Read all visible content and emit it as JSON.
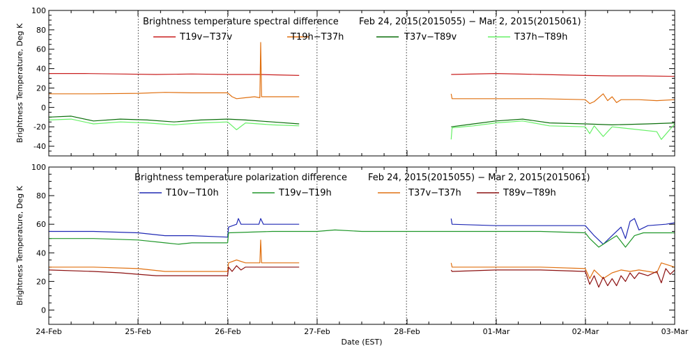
{
  "chart_data": [
    {
      "type": "line",
      "title": "Brightness temperature spectral difference",
      "date_range": "Feb 24, 2015(2015055) − Mar  2, 2015(2015061)",
      "ylabel": "Brightness Temperature, Deg K",
      "xlabel": "",
      "ylim": [
        -50,
        100
      ],
      "yticks": [
        -40,
        -20,
        0,
        20,
        40,
        60,
        80,
        100
      ],
      "xlim": [
        0,
        7
      ],
      "x_unit": "days since 24-Feb 00:00 EST",
      "series": [
        {
          "name": "T19v−T37v",
          "color": "#c81e1e",
          "segments": [
            [
              [
                0,
                35
              ],
              [
                0.4,
                35
              ],
              [
                0.8,
                34.5
              ],
              [
                1.2,
                34
              ],
              [
                1.6,
                34.5
              ],
              [
                2,
                34
              ],
              [
                2.2,
                34
              ],
              [
                2.35,
                34
              ],
              [
                2.8,
                33
              ]
            ],
            [
              [
                4.5,
                34
              ],
              [
                5,
                35
              ],
              [
                5.5,
                34
              ],
              [
                6,
                33
              ],
              [
                6.3,
                32.5
              ],
              [
                6.6,
                32.5
              ],
              [
                7,
                32
              ]
            ]
          ]
        },
        {
          "name": "T19h−T37h",
          "color": "#e07010",
          "segments": [
            [
              [
                0,
                14
              ],
              [
                0.5,
                14
              ],
              [
                1,
                14.5
              ],
              [
                1.3,
                15.5
              ],
              [
                1.6,
                15
              ],
              [
                2,
                15
              ],
              [
                2.05,
                11
              ],
              [
                2.1,
                9
              ],
              [
                2.2,
                10
              ],
              [
                2.3,
                11
              ],
              [
                2.36,
                10
              ],
              [
                2.37,
                67
              ],
              [
                2.38,
                11
              ],
              [
                2.8,
                11
              ]
            ],
            [
              [
                4.5,
                14
              ],
              [
                4.51,
                9
              ],
              [
                5,
                9
              ],
              [
                5.5,
                9
              ],
              [
                6,
                8
              ],
              [
                6.05,
                4
              ],
              [
                6.1,
                6
              ],
              [
                6.2,
                14
              ],
              [
                6.25,
                7
              ],
              [
                6.3,
                11
              ],
              [
                6.35,
                5
              ],
              [
                6.4,
                8
              ],
              [
                6.6,
                8
              ],
              [
                6.8,
                7
              ],
              [
                7,
                8
              ]
            ]
          ]
        },
        {
          "name": "T37v−T89v",
          "color": "#0a6e0a",
          "segments": [
            [
              [
                0,
                -10
              ],
              [
                0.25,
                -9
              ],
              [
                0.5,
                -14
              ],
              [
                0.8,
                -12
              ],
              [
                1.1,
                -13
              ],
              [
                1.4,
                -15
              ],
              [
                1.7,
                -13
              ],
              [
                2,
                -12
              ],
              [
                2.2,
                -13
              ],
              [
                2.5,
                -15
              ],
              [
                2.8,
                -17
              ]
            ],
            [
              [
                4.5,
                -20
              ],
              [
                4.75,
                -17
              ],
              [
                5,
                -14
              ],
              [
                5.3,
                -12
              ],
              [
                5.6,
                -16
              ],
              [
                6,
                -17
              ],
              [
                6.3,
                -18
              ],
              [
                6.7,
                -17
              ],
              [
                7,
                -16
              ]
            ]
          ]
        },
        {
          "name": "T37h−T89h",
          "color": "#66f066",
          "segments": [
            [
              [
                0,
                -13
              ],
              [
                0.25,
                -12
              ],
              [
                0.5,
                -17
              ],
              [
                0.8,
                -15
              ],
              [
                1.1,
                -16
              ],
              [
                1.4,
                -18
              ],
              [
                1.7,
                -16
              ],
              [
                2,
                -15
              ],
              [
                2.1,
                -23
              ],
              [
                2.2,
                -16
              ],
              [
                2.5,
                -18
              ],
              [
                2.8,
                -19
              ]
            ],
            [
              [
                4.5,
                -33
              ],
              [
                4.51,
                -21
              ],
              [
                4.75,
                -19
              ],
              [
                5,
                -16
              ],
              [
                5.3,
                -14
              ],
              [
                5.6,
                -19
              ],
              [
                6,
                -20
              ],
              [
                6.05,
                -27
              ],
              [
                6.1,
                -19
              ],
              [
                6.2,
                -30
              ],
              [
                6.3,
                -20
              ],
              [
                6.5,
                -22
              ],
              [
                6.8,
                -25
              ],
              [
                6.85,
                -33
              ],
              [
                7,
                -17
              ]
            ]
          ]
        }
      ]
    },
    {
      "type": "line",
      "title": "Brightness temperature polarization difference",
      "date_range": "Feb 24, 2015(2015055) − Mar  2, 2015(2015061)",
      "ylabel": "Brightness Temperature, Deg K",
      "xlabel": "Date (EST)",
      "ylim": [
        -10,
        100
      ],
      "yticks": [
        0,
        20,
        40,
        60,
        80,
        100
      ],
      "xlim": [
        0,
        7
      ],
      "xticks": [
        "24-Feb",
        "25-Feb",
        "26-Feb",
        "27-Feb",
        "28-Feb",
        "01-Mar",
        "02-Mar",
        "03-Mar"
      ],
      "series": [
        {
          "name": "T10v−T10h",
          "color": "#1e28b4",
          "segments": [
            [
              [
                0,
                55
              ],
              [
                0.5,
                55
              ],
              [
                1,
                54
              ],
              [
                1.3,
                52
              ],
              [
                1.6,
                52
              ],
              [
                2,
                51
              ],
              [
                2.01,
                58
              ],
              [
                2.1,
                60
              ],
              [
                2.12,
                64
              ],
              [
                2.15,
                60
              ],
              [
                2.35,
                60
              ],
              [
                2.37,
                64
              ],
              [
                2.4,
                60
              ],
              [
                2.8,
                60
              ]
            ],
            [
              [
                4.5,
                64
              ],
              [
                4.51,
                60
              ],
              [
                5,
                59
              ],
              [
                5.5,
                59
              ],
              [
                6,
                59
              ],
              [
                6.1,
                52
              ],
              [
                6.2,
                46
              ],
              [
                6.3,
                52
              ],
              [
                6.4,
                58
              ],
              [
                6.45,
                50
              ],
              [
                6.5,
                62
              ],
              [
                6.55,
                64
              ],
              [
                6.6,
                56
              ],
              [
                6.7,
                59
              ],
              [
                6.9,
                60
              ],
              [
                7,
                61
              ]
            ]
          ]
        },
        {
          "name": "T19v−T19h",
          "color": "#1e9628",
          "segments": [
            [
              [
                0,
                50
              ],
              [
                0.5,
                50
              ],
              [
                1,
                49
              ],
              [
                1.3,
                47
              ],
              [
                1.45,
                46
              ],
              [
                1.6,
                47
              ],
              [
                2,
                47
              ],
              [
                2.01,
                54
              ],
              [
                2.5,
                55
              ],
              [
                3,
                55
              ],
              [
                3.2,
                56
              ],
              [
                3.5,
                55
              ],
              [
                4,
                55
              ],
              [
                4.5,
                55
              ],
              [
                5,
                55
              ],
              [
                5.5,
                55
              ],
              [
                6,
                54
              ],
              [
                6.05,
                50
              ],
              [
                6.15,
                44
              ],
              [
                6.25,
                48
              ],
              [
                6.35,
                52
              ],
              [
                6.45,
                44
              ],
              [
                6.55,
                52
              ],
              [
                6.65,
                54
              ],
              [
                7,
                54
              ]
            ]
          ]
        },
        {
          "name": "T37v−T37h",
          "color": "#e07010",
          "segments": [
            [
              [
                0,
                30
              ],
              [
                0.5,
                30
              ],
              [
                1,
                29
              ],
              [
                1.3,
                27
              ],
              [
                1.6,
                27
              ],
              [
                2,
                27
              ],
              [
                2.01,
                33
              ],
              [
                2.1,
                35
              ],
              [
                2.2,
                33
              ],
              [
                2.36,
                33
              ],
              [
                2.37,
                49
              ],
              [
                2.38,
                33
              ],
              [
                2.8,
                33
              ]
            ],
            [
              [
                4.5,
                33
              ],
              [
                4.51,
                30
              ],
              [
                5,
                30
              ],
              [
                5.5,
                30
              ],
              [
                6,
                29
              ],
              [
                6.05,
                22
              ],
              [
                6.1,
                28
              ],
              [
                6.2,
                22
              ],
              [
                6.3,
                26
              ],
              [
                6.4,
                28
              ],
              [
                6.5,
                27
              ],
              [
                6.6,
                28
              ],
              [
                6.8,
                26
              ],
              [
                6.85,
                33
              ],
              [
                7,
                30
              ]
            ]
          ]
        },
        {
          "name": "T89v−T89h",
          "color": "#8c1010",
          "segments": [
            [
              [
                0,
                28
              ],
              [
                0.5,
                27
              ],
              [
                0.8,
                26
              ],
              [
                1,
                25
              ],
              [
                1.2,
                24
              ],
              [
                1.5,
                24
              ],
              [
                1.8,
                24
              ],
              [
                2,
                24
              ],
              [
                2.01,
                30
              ],
              [
                2.05,
                27
              ],
              [
                2.1,
                31
              ],
              [
                2.15,
                28
              ],
              [
                2.2,
                30
              ],
              [
                2.8,
                30
              ]
            ],
            [
              [
                4.5,
                28
              ],
              [
                4.51,
                27
              ],
              [
                5,
                28
              ],
              [
                5.5,
                28
              ],
              [
                6,
                27
              ],
              [
                6.05,
                18
              ],
              [
                6.1,
                24
              ],
              [
                6.15,
                16
              ],
              [
                6.2,
                23
              ],
              [
                6.25,
                17
              ],
              [
                6.3,
                22
              ],
              [
                6.35,
                17
              ],
              [
                6.4,
                24
              ],
              [
                6.45,
                20
              ],
              [
                6.5,
                26
              ],
              [
                6.55,
                22
              ],
              [
                6.6,
                26
              ],
              [
                6.7,
                24
              ],
              [
                6.8,
                27
              ],
              [
                6.85,
                19
              ],
              [
                6.9,
                29
              ],
              [
                6.95,
                25
              ],
              [
                7,
                28
              ]
            ]
          ]
        }
      ]
    }
  ]
}
